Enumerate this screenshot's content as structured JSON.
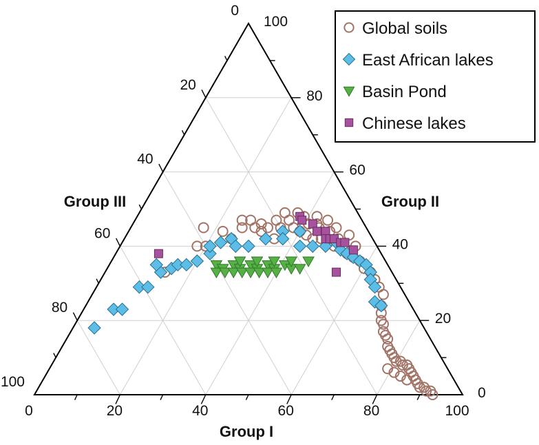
{
  "chart_data": {
    "type": "ternary-scatter",
    "axes": {
      "bottom": {
        "label": "Group I",
        "ticks": [
          "0",
          "20",
          "40",
          "60",
          "80",
          "100"
        ]
      },
      "right": {
        "label": "Group II",
        "ticks": [
          "0",
          "20",
          "40",
          "60",
          "80",
          "100"
        ]
      },
      "left": {
        "label": "Group III",
        "ticks": [
          "0",
          "20",
          "40",
          "60",
          "80",
          "100"
        ]
      }
    },
    "grid": true,
    "legend": {
      "position": "top-right"
    },
    "series": [
      {
        "name": "Global soils",
        "marker": "circle-open",
        "color": "#a27467",
        "points": [
          [
            20,
            40
          ],
          [
            22,
            44
          ],
          [
            25,
            47
          ],
          [
            27,
            47
          ],
          [
            30,
            46
          ],
          [
            33,
            47
          ],
          [
            36,
            47
          ],
          [
            39,
            48
          ],
          [
            42,
            48
          ],
          [
            45,
            47
          ],
          [
            48,
            45
          ],
          [
            52,
            43
          ],
          [
            55,
            40
          ],
          [
            26,
            45
          ],
          [
            29,
            45
          ],
          [
            32,
            45
          ],
          [
            35,
            45
          ],
          [
            38,
            45
          ],
          [
            41,
            46
          ],
          [
            44,
            45
          ],
          [
            47,
            44
          ],
          [
            50,
            42
          ],
          [
            53,
            39
          ],
          [
            56,
            37
          ],
          [
            40,
            44
          ],
          [
            42,
            43
          ],
          [
            44,
            42
          ],
          [
            46,
            42
          ],
          [
            48,
            41
          ],
          [
            50,
            40
          ],
          [
            52,
            40
          ],
          [
            54,
            38
          ],
          [
            43,
            46
          ],
          [
            37,
            49
          ],
          [
            34,
            49
          ],
          [
            31,
            44
          ],
          [
            35,
            42
          ],
          [
            25,
            42
          ],
          [
            17,
            45
          ],
          [
            18,
            40
          ],
          [
            14,
            33
          ],
          [
            58,
            36
          ],
          [
            60,
            34
          ],
          [
            62,
            33
          ],
          [
            64,
            31
          ],
          [
            66,
            29
          ],
          [
            68,
            27
          ],
          [
            69,
            24
          ],
          [
            70,
            22
          ],
          [
            71,
            20
          ],
          [
            72,
            19
          ],
          [
            74,
            16
          ],
          [
            76,
            13
          ],
          [
            78,
            11
          ],
          [
            80,
            9
          ],
          [
            82,
            8
          ],
          [
            84,
            7
          ],
          [
            85,
            6
          ],
          [
            86,
            5
          ],
          [
            87,
            4
          ],
          [
            88,
            3
          ],
          [
            89,
            2
          ],
          [
            90,
            2
          ],
          [
            91,
            1
          ],
          [
            92,
            1
          ],
          [
            93,
            0
          ],
          [
            75,
            15
          ],
          [
            77,
            12
          ],
          [
            79,
            10
          ],
          [
            81,
            9
          ],
          [
            83,
            8
          ],
          [
            73,
            17
          ],
          [
            79,
            7
          ],
          [
            81,
            6
          ],
          [
            83,
            5
          ],
          [
            85,
            4
          ]
        ]
      },
      {
        "name": "East African lakes",
        "marker": "diamond",
        "color": "#5cbde6",
        "points": [
          [
            5,
            18
          ],
          [
            7,
            23
          ],
          [
            9,
            23
          ],
          [
            10,
            29
          ],
          [
            12,
            29
          ],
          [
            13,
            33
          ],
          [
            15,
            34
          ],
          [
            16,
            35
          ],
          [
            18,
            35
          ],
          [
            20,
            36
          ],
          [
            22,
            38
          ],
          [
            23,
            41
          ],
          [
            25,
            42
          ],
          [
            27,
            40
          ],
          [
            30,
            40
          ],
          [
            33,
            42
          ],
          [
            36,
            44
          ],
          [
            40,
            44
          ],
          [
            42,
            40
          ],
          [
            45,
            40
          ],
          [
            48,
            40
          ],
          [
            50,
            41
          ],
          [
            52,
            39
          ],
          [
            54,
            38
          ],
          [
            56,
            37
          ],
          [
            58,
            36
          ],
          [
            60,
            35
          ],
          [
            62,
            33
          ],
          [
            63,
            31
          ],
          [
            65,
            29
          ],
          [
            67,
            25
          ],
          [
            69,
            24
          ],
          [
            11,
            35
          ],
          [
            21,
            40
          ],
          [
            37,
            42
          ]
        ]
      },
      {
        "name": "Basin Pond",
        "marker": "triangle-down",
        "color": "#56b046",
        "points": [
          [
            25,
            35
          ],
          [
            27,
            34
          ],
          [
            29,
            35
          ],
          [
            31,
            34
          ],
          [
            33,
            35
          ],
          [
            35,
            34
          ],
          [
            37,
            35
          ],
          [
            39,
            34
          ],
          [
            41,
            35
          ],
          [
            43,
            34
          ],
          [
            45,
            34
          ],
          [
            26,
            33
          ],
          [
            28,
            33
          ],
          [
            30,
            33
          ],
          [
            32,
            33
          ],
          [
            34,
            33
          ],
          [
            36,
            33
          ],
          [
            38,
            33
          ],
          [
            40,
            33
          ],
          [
            30,
            36
          ],
          [
            34,
            36
          ],
          [
            38,
            36
          ],
          [
            42,
            36
          ],
          [
            46,
            36
          ]
        ]
      },
      {
        "name": "Chinese lakes",
        "marker": "square",
        "color": "#a7529c",
        "points": [
          [
            10,
            38
          ],
          [
            38,
            48
          ],
          [
            39,
            47
          ],
          [
            42,
            46
          ],
          [
            44,
            44
          ],
          [
            46,
            44
          ],
          [
            47,
            42
          ],
          [
            48,
            42
          ],
          [
            49,
            42
          ],
          [
            51,
            41
          ],
          [
            52,
            41
          ],
          [
            55,
            39
          ],
          [
            54,
            33
          ]
        ]
      }
    ]
  }
}
